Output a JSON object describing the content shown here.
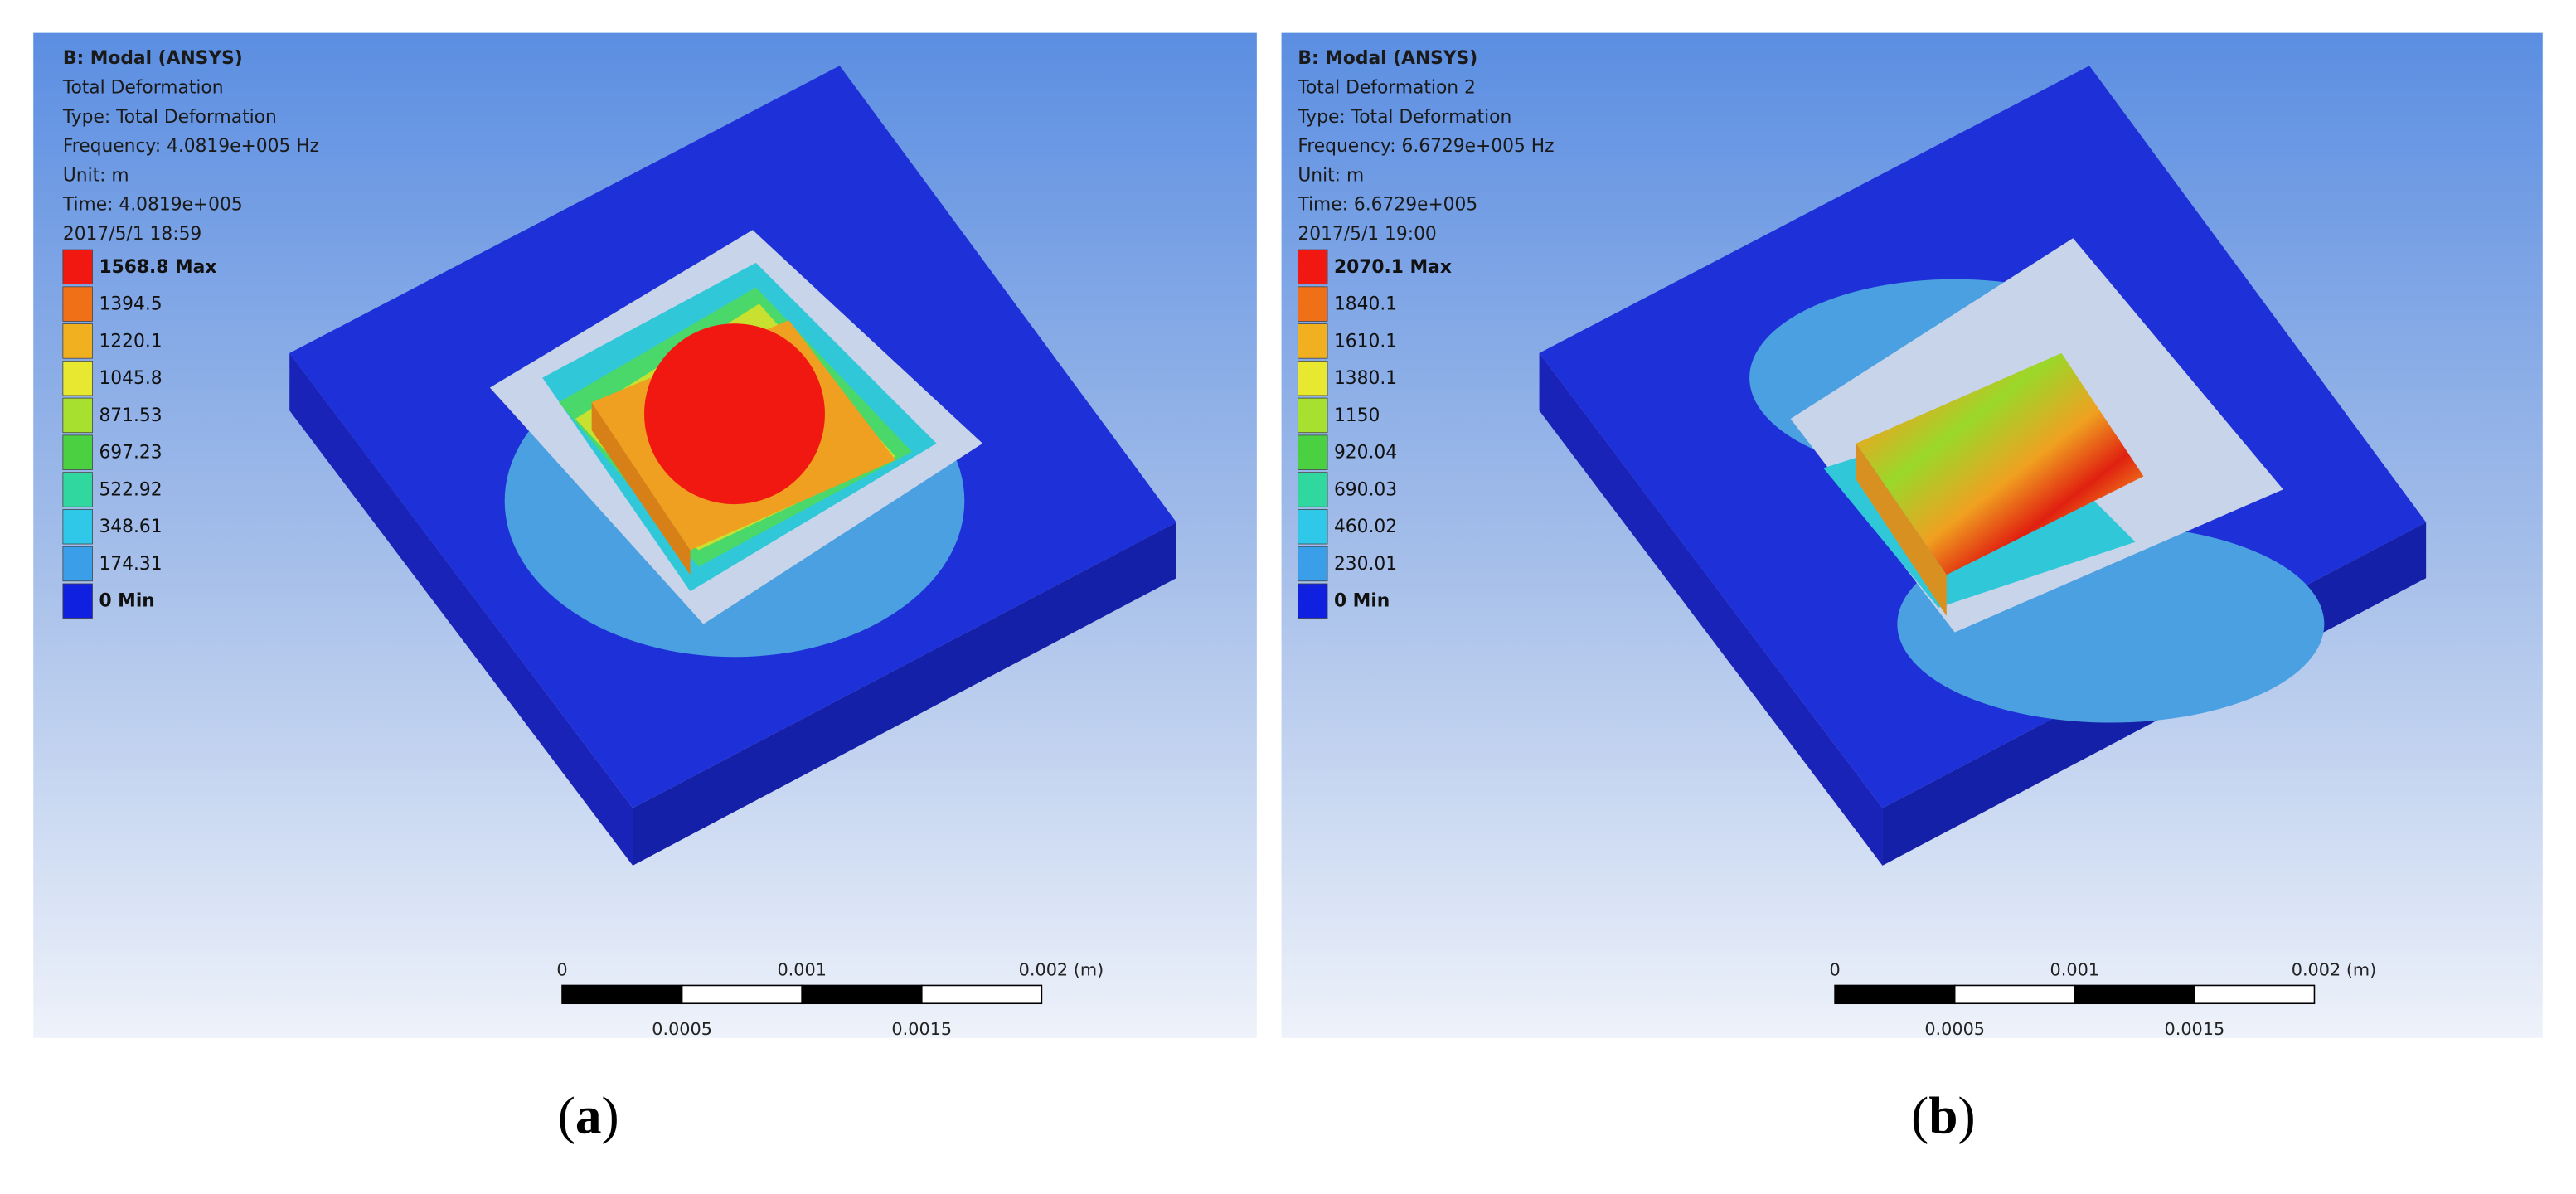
{
  "panels": [
    {
      "header": [
        "B: Modal (ANSYS)",
        "Total Deformation",
        "Type: Total Deformation",
        "Frequency: 4.0819e+005 Hz",
        "Unit: m",
        "Time: 4.0819e+005",
        "2017/5/1 18:59"
      ],
      "legend": [
        "1568.8 Max",
        "1394.5",
        "1220.1",
        "1045.8",
        "871.53",
        "697.23",
        "522.92",
        "348.61",
        "174.31",
        "0 Min"
      ],
      "scale_top": [
        "0",
        "0.001",
        "0.002 (m)"
      ],
      "scale_bottom": [
        "0.0005",
        "0.0015"
      ],
      "caption": [
        "(",
        "a",
        ")"
      ]
    },
    {
      "header": [
        "B: Modal (ANSYS)",
        "Total Deformation 2",
        "Type: Total Deformation",
        "Frequency: 6.6729e+005 Hz",
        "Unit: m",
        "Time: 6.6729e+005",
        "2017/5/1 19:00"
      ],
      "legend": [
        "2070.1 Max",
        "1840.1",
        "1610.1",
        "1380.1",
        "1150",
        "920.04",
        "690.03",
        "460.02",
        "230.01",
        "0 Min"
      ],
      "scale_top": [
        "0",
        "0.001",
        "0.002 (m)"
      ],
      "scale_bottom": [
        "0.0005",
        "0.0015"
      ],
      "caption": [
        "(",
        "b",
        ")"
      ]
    }
  ]
}
